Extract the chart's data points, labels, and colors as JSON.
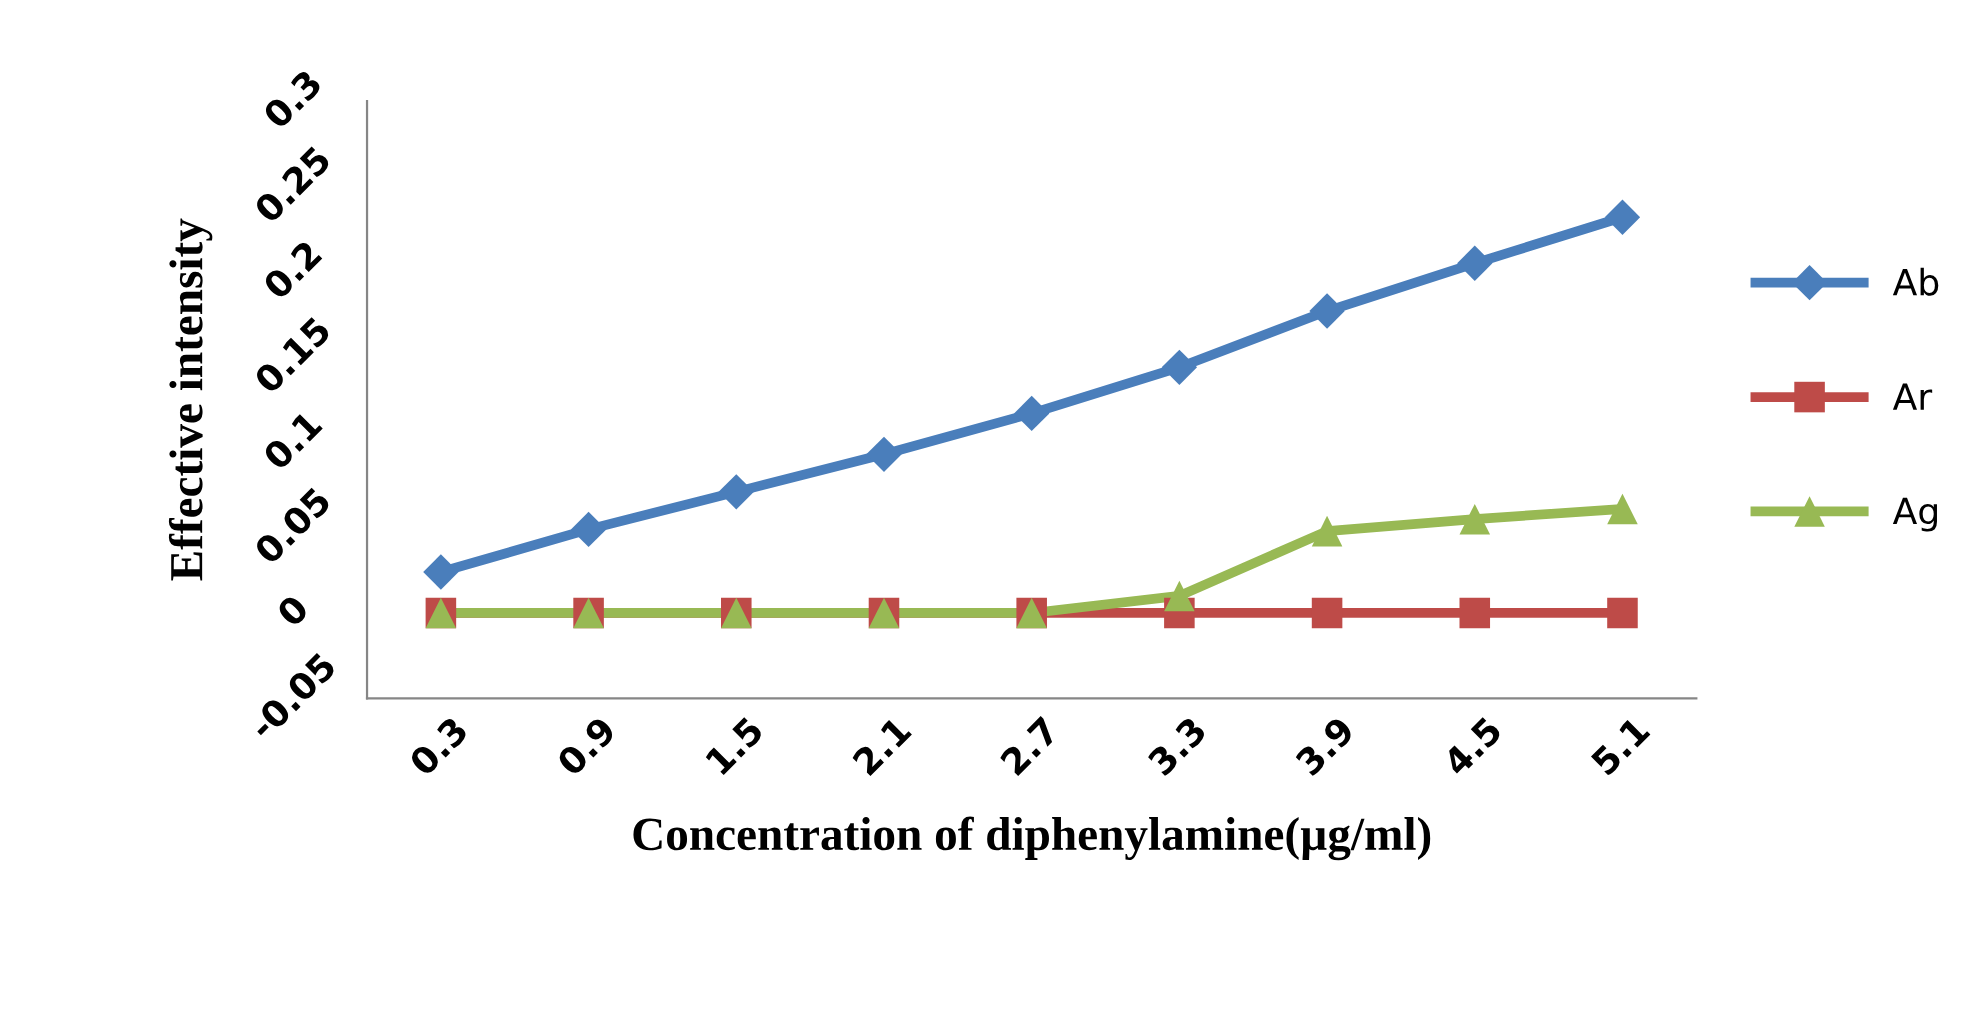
{
  "chart_data": {
    "type": "line",
    "xlabel": "Concentration of diphenylamine(µg/ml)",
    "ylabel": "Effective intensity",
    "categories": [
      "0.3",
      "0.9",
      "1.5",
      "2.1",
      "2.7",
      "3.3",
      "3.9",
      "4.5",
      "5.1"
    ],
    "series": [
      {
        "name": "Ab",
        "color": "#4a7ebb",
        "marker": "diamond",
        "values": [
          0.024,
          0.049,
          0.071,
          0.093,
          0.117,
          0.144,
          0.177,
          0.205,
          0.232
        ]
      },
      {
        "name": "Ar",
        "color": "#be4b48",
        "marker": "square",
        "values": [
          0,
          0,
          0,
          0,
          0,
          0,
          0,
          0,
          0
        ]
      },
      {
        "name": "Ag",
        "color": "#98b954",
        "marker": "triangle",
        "values": [
          0,
          0,
          0,
          0,
          0,
          0.01,
          0.048,
          0.055,
          0.061
        ]
      }
    ],
    "ylim": [
      -0.05,
      0.3
    ],
    "yticks": [
      -0.05,
      0,
      0.05,
      0.1,
      0.15,
      0.2,
      0.25,
      0.3
    ],
    "grid": false,
    "legend": "right",
    "line_style": "solid"
  }
}
